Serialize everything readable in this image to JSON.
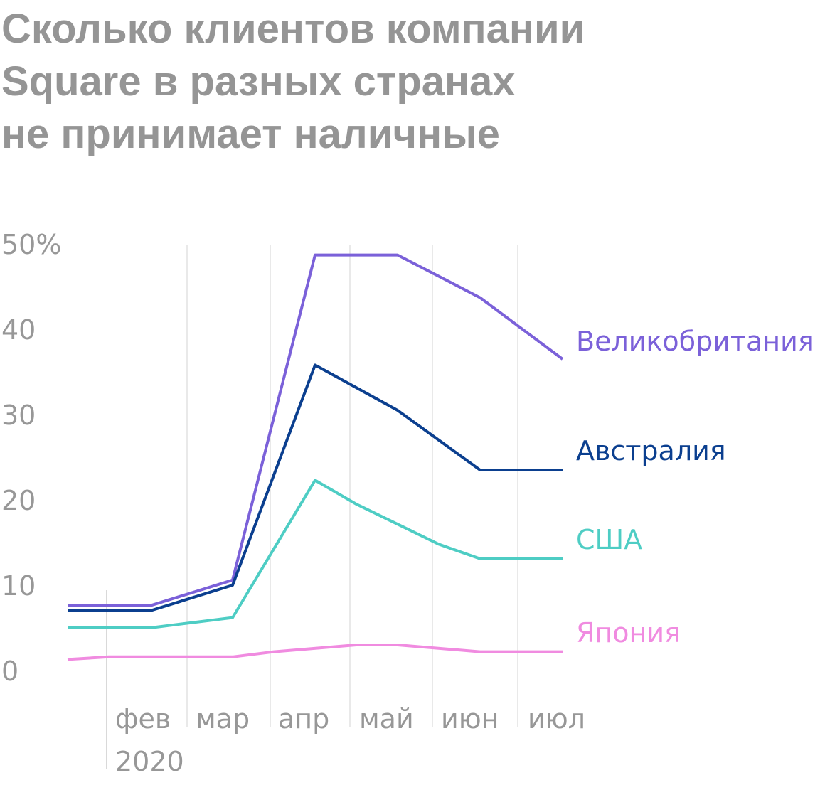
{
  "title_lines": [
    "Сколько клиентов компании",
    "Square в разных странах",
    "не принимает наличные"
  ],
  "chart_data": {
    "type": "line",
    "title": "Сколько клиентов компании Square в разных странах не принимает наличные",
    "ylim": [
      0,
      50
    ],
    "yticks": [
      "50%",
      "40",
      "30",
      "20",
      "10",
      "0"
    ],
    "ytick_values": [
      50,
      40,
      30,
      20,
      10,
      0
    ],
    "x_months": [
      "фев",
      "мар",
      "апр",
      "май",
      "июн",
      "июл"
    ],
    "x_year": "2020",
    "x": [
      0,
      0.5,
      1.5,
      2.5,
      3.0,
      4.0,
      5.0,
      6.0
    ],
    "grid": "vertical",
    "series": [
      {
        "name": "Великобритания",
        "color": "#7B61D9",
        "values": [
          7.6,
          7.6,
          10.6,
          48.7,
          48.7,
          43.7,
          36.5
        ],
        "x": [
          0,
          1.0,
          2.0,
          3.0,
          4.0,
          5.0,
          6.0
        ]
      },
      {
        "name": "Австралия",
        "color": "#0B3F8F",
        "values": [
          7.0,
          7.0,
          10.0,
          35.8,
          30.5,
          23.5,
          23.5
        ],
        "x": [
          0,
          1.0,
          2.0,
          3.0,
          4.0,
          5.0,
          6.0
        ]
      },
      {
        "name": "США",
        "color": "#4ECDC4",
        "values": [
          5.0,
          5.0,
          6.2,
          22.3,
          19.5,
          14.8,
          13.1,
          13.1
        ],
        "x": [
          0,
          1.0,
          2.0,
          3.0,
          3.5,
          4.5,
          5.0,
          6.0
        ]
      },
      {
        "name": "Япония",
        "color": "#F08BE0",
        "values": [
          1.3,
          1.6,
          1.6,
          2.2,
          3.0,
          3.0,
          2.2,
          2.2
        ],
        "x": [
          0,
          0.5,
          2.0,
          2.5,
          3.5,
          4.0,
          5.0,
          6.0
        ]
      }
    ]
  }
}
